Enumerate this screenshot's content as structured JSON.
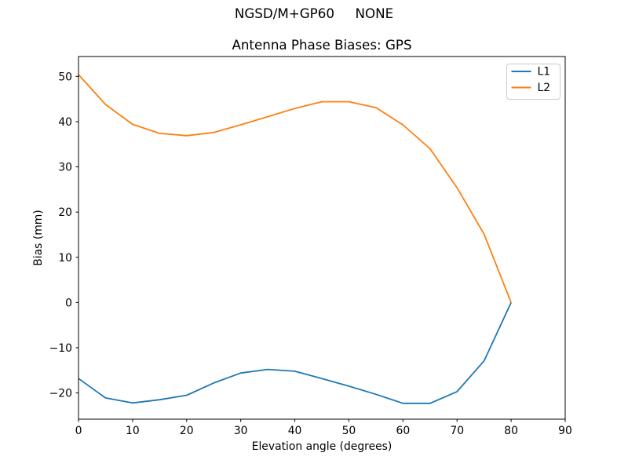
{
  "figure": {
    "suptitle": "NGSD/M+GP60     NONE",
    "background": "#ffffff",
    "text_color": "#000000"
  },
  "chart_data": {
    "type": "line",
    "title": "Antenna Phase Biases: GPS",
    "xlabel": "Elevation angle (degrees)",
    "ylabel": "Bias (mm)",
    "xlim": [
      0,
      90
    ],
    "ylim": [
      -25.8,
      54.4
    ],
    "xticks": [
      0,
      10,
      20,
      30,
      40,
      50,
      60,
      70,
      80,
      90
    ],
    "yticks": [
      -20,
      -10,
      0,
      10,
      20,
      30,
      40,
      50
    ],
    "grid": false,
    "legend": {
      "position": "upper right"
    },
    "x": [
      0,
      5,
      10,
      15,
      20,
      25,
      30,
      35,
      40,
      45,
      50,
      55,
      60,
      65,
      70,
      75,
      80
    ],
    "series": [
      {
        "name": "L1",
        "color": "#1f77b4",
        "values": [
          -16.8,
          -21.1,
          -22.2,
          -21.5,
          -20.5,
          -17.8,
          -15.6,
          -14.8,
          -15.2,
          -16.8,
          -18.5,
          -20.3,
          -22.3,
          -22.3,
          -19.7,
          -12.9,
          0.0
        ]
      },
      {
        "name": "L2",
        "color": "#ff7f0e",
        "values": [
          50.4,
          43.8,
          39.4,
          37.4,
          36.9,
          37.6,
          39.3,
          41.1,
          42.9,
          44.4,
          44.4,
          43.1,
          39.3,
          34.0,
          25.4,
          15.1,
          0.0
        ]
      }
    ]
  }
}
